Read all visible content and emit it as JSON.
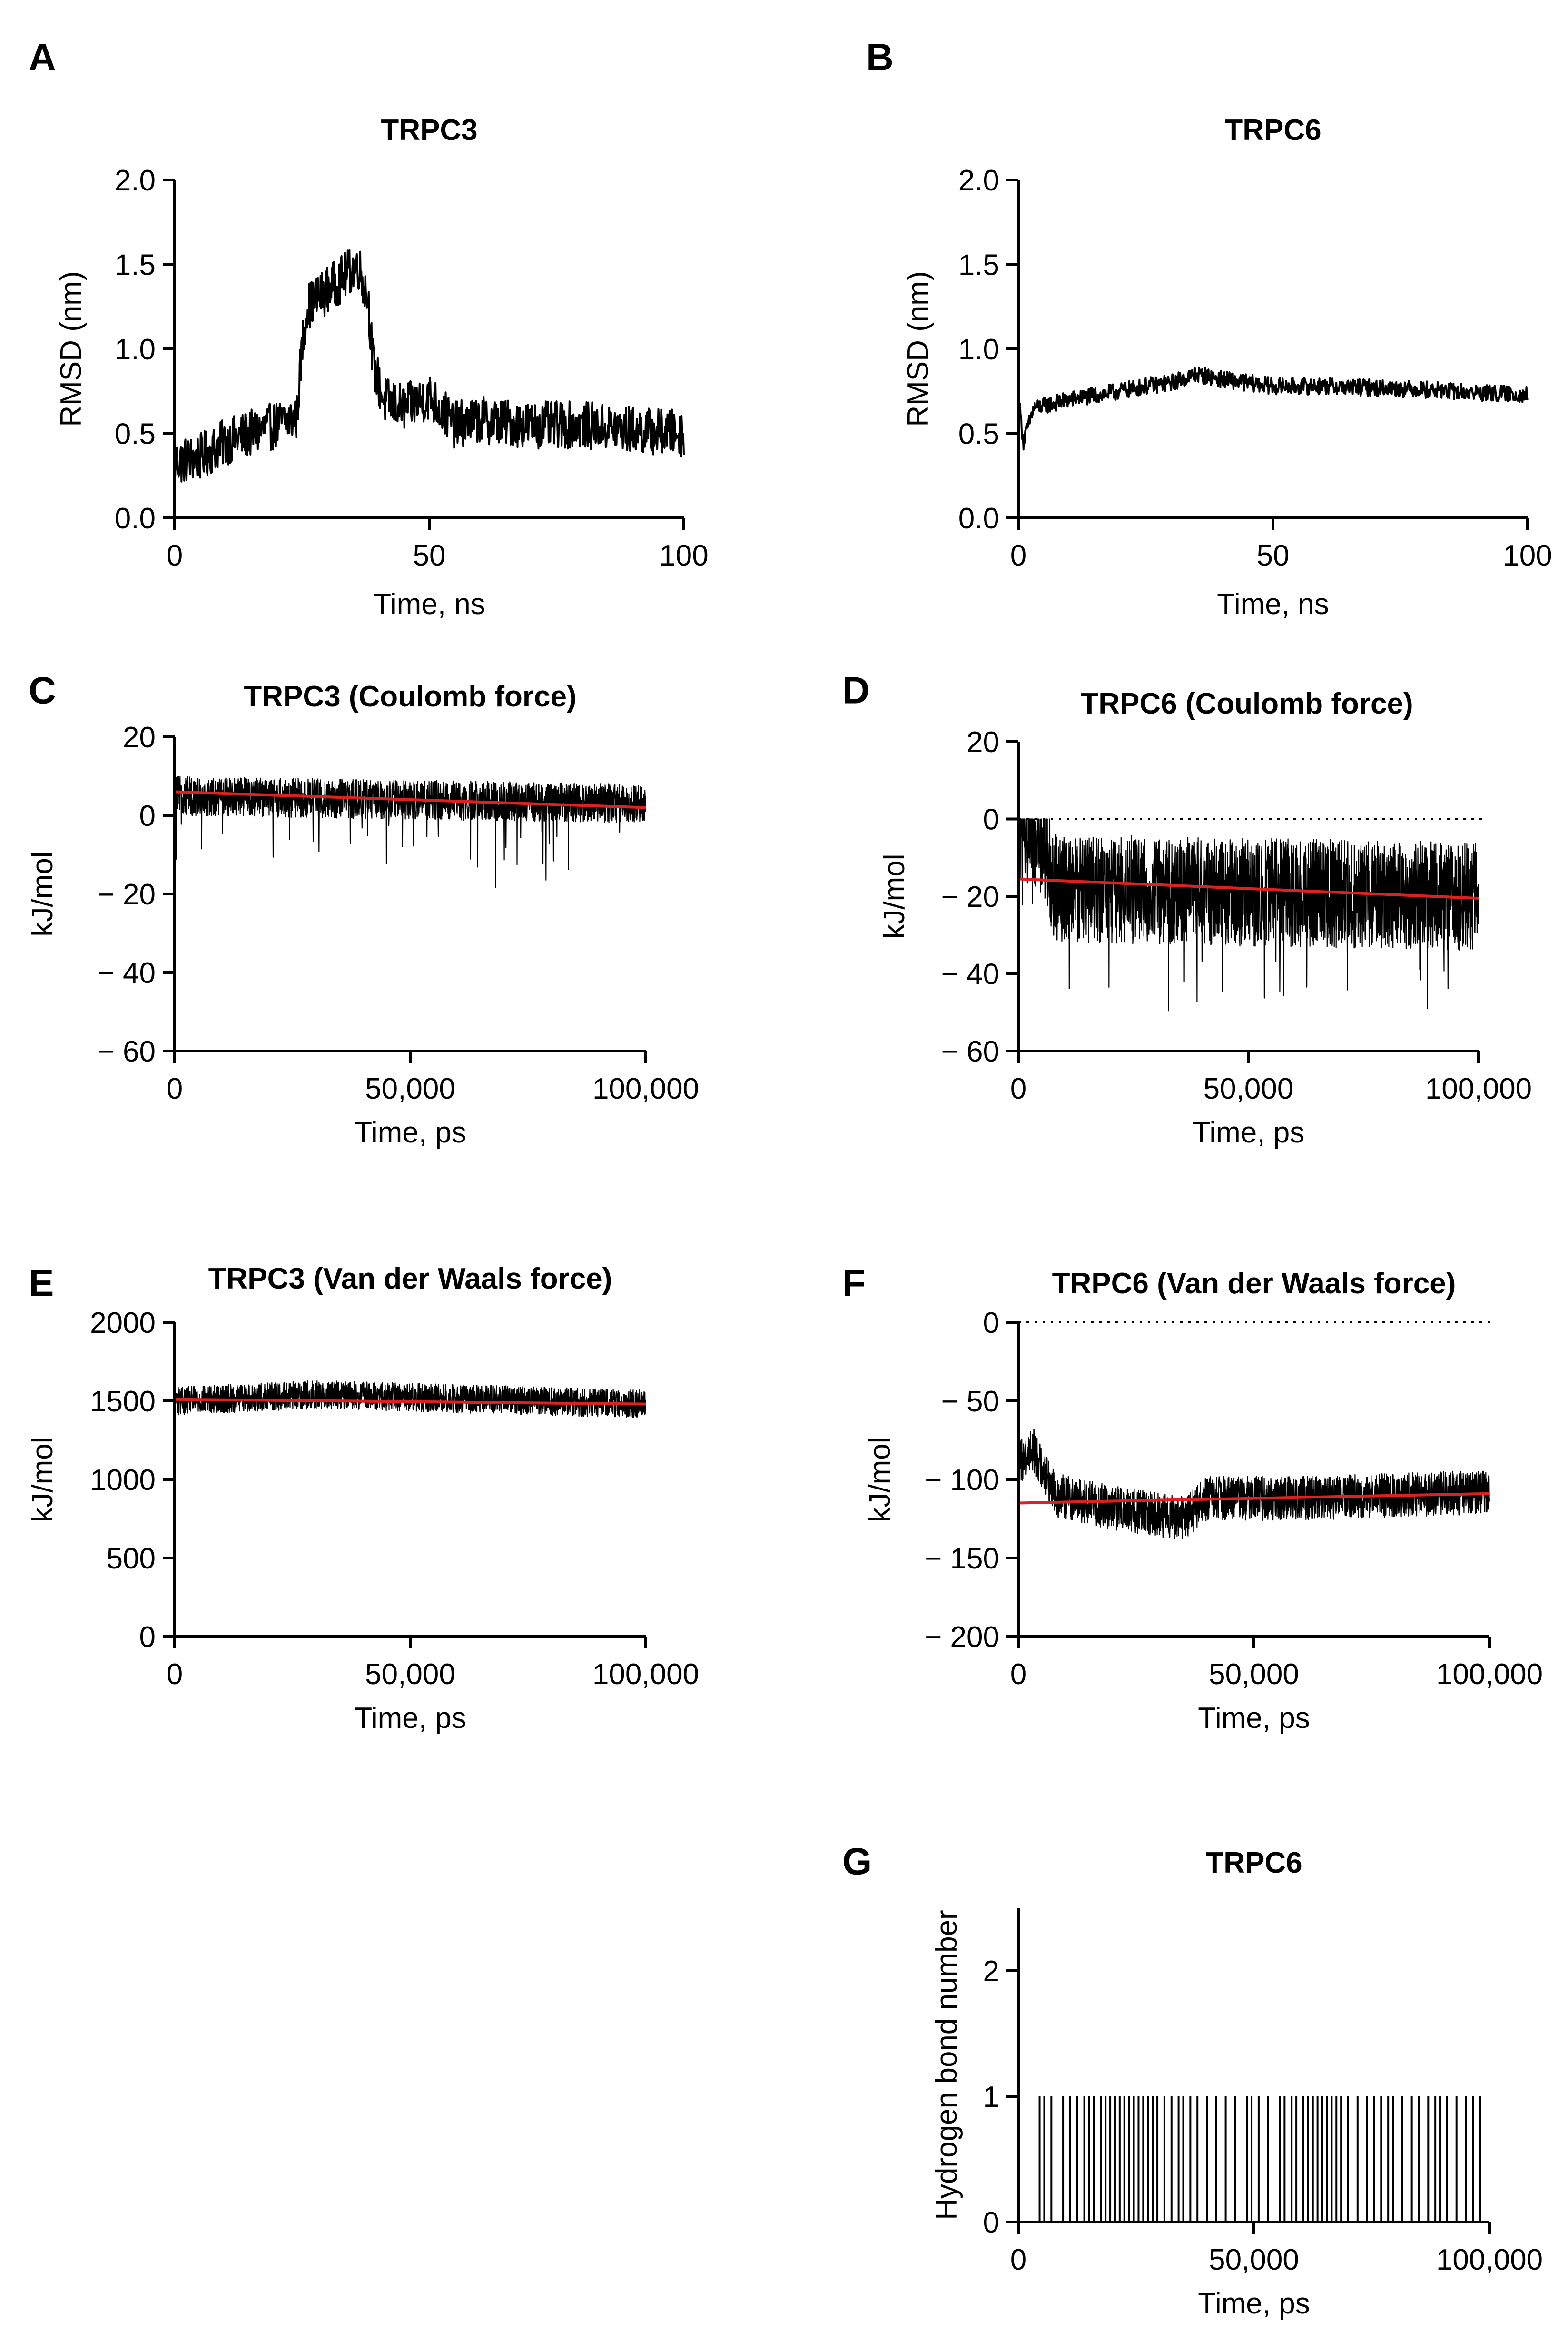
{
  "figure": {
    "description_colors": {
      "series": "#000000",
      "trend": "#e02020",
      "background": "#ffffff"
    }
  },
  "chart_data": [
    {
      "id": "A",
      "panel_label": "A",
      "type": "line",
      "title": "TRPC3",
      "xlabel": "Time, ns",
      "ylabel": "RMSD (nm)",
      "xlim": [
        0,
        100
      ],
      "ylim": [
        0,
        2
      ],
      "xticks": [
        0,
        50,
        100
      ],
      "xtick_labels": [
        "0",
        "50",
        "100"
      ],
      "yticks": [
        0,
        0.5,
        1,
        1.5,
        2
      ],
      "ytick_labels": [
        "0.0",
        "0.5",
        "1.0",
        "1.5",
        "2.0"
      ],
      "series": [
        {
          "name": "RMSD",
          "color": "#000000",
          "anchors": [
            [
              0,
              0.33
            ],
            [
              5,
              0.36
            ],
            [
              10,
              0.45
            ],
            [
              15,
              0.5
            ],
            [
              20,
              0.55
            ],
            [
              24,
              0.6
            ],
            [
              25,
              1.0
            ],
            [
              26,
              1.25
            ],
            [
              30,
              1.35
            ],
            [
              33,
              1.42
            ],
            [
              36,
              1.5
            ],
            [
              38,
              1.3
            ],
            [
              39,
              0.9
            ],
            [
              41,
              0.7
            ],
            [
              45,
              0.65
            ],
            [
              50,
              0.72
            ],
            [
              55,
              0.55
            ],
            [
              60,
              0.58
            ],
            [
              70,
              0.55
            ],
            [
              80,
              0.55
            ],
            [
              90,
              0.52
            ],
            [
              100,
              0.5
            ]
          ],
          "noise": 0.14,
          "points": 900
        }
      ]
    },
    {
      "id": "B",
      "panel_label": "B",
      "type": "line",
      "title": "TRPC6",
      "xlabel": "Time, ns",
      "ylabel": "RMSD (nm)",
      "xlim": [
        0,
        100
      ],
      "ylim": [
        0,
        2
      ],
      "xticks": [
        0,
        50,
        100
      ],
      "xtick_labels": [
        "0",
        "50",
        "100"
      ],
      "yticks": [
        0,
        0.5,
        1,
        1.5,
        2
      ],
      "ytick_labels": [
        "0.0",
        "0.5",
        "1.0",
        "1.5",
        "2.0"
      ],
      "series": [
        {
          "name": "RMSD",
          "color": "#000000",
          "anchors": [
            [
              0,
              0.72
            ],
            [
              1,
              0.45
            ],
            [
              3,
              0.65
            ],
            [
              10,
              0.7
            ],
            [
              20,
              0.75
            ],
            [
              25,
              0.78
            ],
            [
              30,
              0.8
            ],
            [
              35,
              0.85
            ],
            [
              40,
              0.82
            ],
            [
              50,
              0.78
            ],
            [
              60,
              0.78
            ],
            [
              70,
              0.77
            ],
            [
              80,
              0.76
            ],
            [
              90,
              0.74
            ],
            [
              100,
              0.73
            ]
          ],
          "noise": 0.05,
          "points": 900
        }
      ]
    },
    {
      "id": "C",
      "panel_label": "C",
      "type": "line",
      "title": "TRPC3 (Coulomb force)",
      "xlabel": "Time, ps",
      "ylabel": "kJ/mol",
      "xlim": [
        0,
        100000
      ],
      "ylim": [
        -60,
        20
      ],
      "xticks": [
        0,
        50000,
        100000
      ],
      "xtick_labels": [
        "0",
        "50,000",
        "100,000"
      ],
      "yticks": [
        -60,
        -40,
        -20,
        0,
        20
      ],
      "ytick_labels": [
        "− 60",
        "− 40",
        "− 20",
        "0",
        "20"
      ],
      "series": [
        {
          "name": "Coulomb energy",
          "color": "#000000",
          "anchors": [
            [
              0,
              5
            ],
            [
              100000,
              3
            ]
          ],
          "noise": 5,
          "points": 2200,
          "spike_down": 20
        }
      ],
      "trend": {
        "start": [
          0,
          6
        ],
        "end": [
          100000,
          2
        ],
        "color": "#e02020"
      }
    },
    {
      "id": "D",
      "panel_label": "D",
      "type": "line",
      "title": "TRPC6 (Coulomb force)",
      "xlabel": "Time, ps",
      "ylabel": "kJ/mol",
      "xlim": [
        0,
        100000
      ],
      "ylim": [
        -60,
        20
      ],
      "xticks": [
        0,
        50000,
        100000
      ],
      "xtick_labels": [
        "0",
        "50,000",
        "100,000"
      ],
      "yticks": [
        -60,
        -40,
        -20,
        0,
        20
      ],
      "ytick_labels": [
        "− 60",
        "− 40",
        "− 20",
        "0",
        "20"
      ],
      "series": [
        {
          "name": "Coulomb energy",
          "color": "#000000",
          "anchors": [
            [
              0,
              -2
            ],
            [
              5000,
              -5
            ],
            [
              8000,
              -18
            ],
            [
              100000,
              -20
            ]
          ],
          "noise": 14,
          "points": 2200,
          "cap": 0,
          "spike_down": 30
        }
      ],
      "trend": {
        "start": [
          0,
          -15.5
        ],
        "end": [
          100000,
          -20.5
        ],
        "color": "#e02020"
      },
      "zero_line": 0
    },
    {
      "id": "E",
      "panel_label": "E",
      "type": "line",
      "title": "TRPC3 (Van der Waals force)",
      "xlabel": "Time, ps",
      "ylabel": "kJ/mol",
      "xlim": [
        0,
        100000
      ],
      "ylim": [
        0,
        2000
      ],
      "xticks": [
        0,
        50000,
        100000
      ],
      "xtick_labels": [
        "0",
        "50,000",
        "100,000"
      ],
      "yticks": [
        0,
        500,
        1000,
        1500,
        2000
      ],
      "ytick_labels": [
        "0",
        "500",
        "1000",
        "1500",
        "2000"
      ],
      "series": [
        {
          "name": "Van der Waals energy",
          "color": "#000000",
          "anchors": [
            [
              0,
              1500
            ],
            [
              30000,
              1540
            ],
            [
              100000,
              1480
            ]
          ],
          "noise": 90,
          "points": 2200
        }
      ],
      "trend": {
        "start": [
          0,
          1510
        ],
        "end": [
          100000,
          1480
        ],
        "color": "#e02020"
      }
    },
    {
      "id": "F",
      "panel_label": "F",
      "type": "line",
      "title": "TRPC6 (Van der Waals force)",
      "xlabel": "Time, ps",
      "ylabel": "kJ/mol",
      "xlim": [
        0,
        100000
      ],
      "ylim": [
        -200,
        0
      ],
      "xticks": [
        0,
        50000,
        100000
      ],
      "xtick_labels": [
        "0",
        "50,000",
        "100,000"
      ],
      "yticks": [
        -200,
        -150,
        -100,
        -50,
        0
      ],
      "ytick_labels": [
        "− 200",
        "− 150",
        "− 100",
        "− 50",
        "0"
      ],
      "series": [
        {
          "name": "Van der Waals energy",
          "color": "#000000",
          "anchors": [
            [
              0,
              -90
            ],
            [
              3000,
              -80
            ],
            [
              8000,
              -110
            ],
            [
              20000,
              -118
            ],
            [
              35000,
              -125
            ],
            [
              40000,
              -112
            ],
            [
              60000,
              -112
            ],
            [
              100000,
              -108
            ]
          ],
          "noise": 14,
          "points": 2200
        }
      ],
      "trend": {
        "start": [
          0,
          -115
        ],
        "end": [
          100000,
          -109
        ],
        "color": "#e02020"
      },
      "zero_line": 0
    },
    {
      "id": "G",
      "panel_label": "G",
      "type": "bar",
      "title": "TRPC6",
      "xlabel": "Time, ps",
      "ylabel": "Hydrogen bond number",
      "xlim": [
        0,
        100000
      ],
      "ylim": [
        0,
        2.5
      ],
      "xticks": [
        0,
        50000,
        100000
      ],
      "xtick_labels": [
        "0",
        "50,000",
        "100,000"
      ],
      "yticks": [
        0,
        1,
        2
      ],
      "ytick_labels": [
        "0",
        "1",
        "2"
      ],
      "events": [
        4500,
        5500,
        7000,
        9500,
        11000,
        12500,
        14000,
        15000,
        16000,
        17500,
        18500,
        19500,
        20500,
        21500,
        22500,
        23500,
        24500,
        25500,
        26500,
        27500,
        28500,
        29500,
        31000,
        32500,
        34000,
        35000,
        36500,
        38000,
        40000,
        42000,
        44000,
        46000,
        48500,
        49500,
        51000,
        53000,
        55500,
        56500,
        58000,
        59000,
        60500,
        61500,
        62500,
        63500,
        64500,
        65500,
        66500,
        67500,
        68500,
        70000,
        72000,
        74000,
        75500,
        77000,
        78500,
        79500,
        81500,
        83500,
        85000,
        87000,
        88500,
        89500,
        91000,
        93000,
        95000,
        96500,
        98000
      ]
    }
  ]
}
